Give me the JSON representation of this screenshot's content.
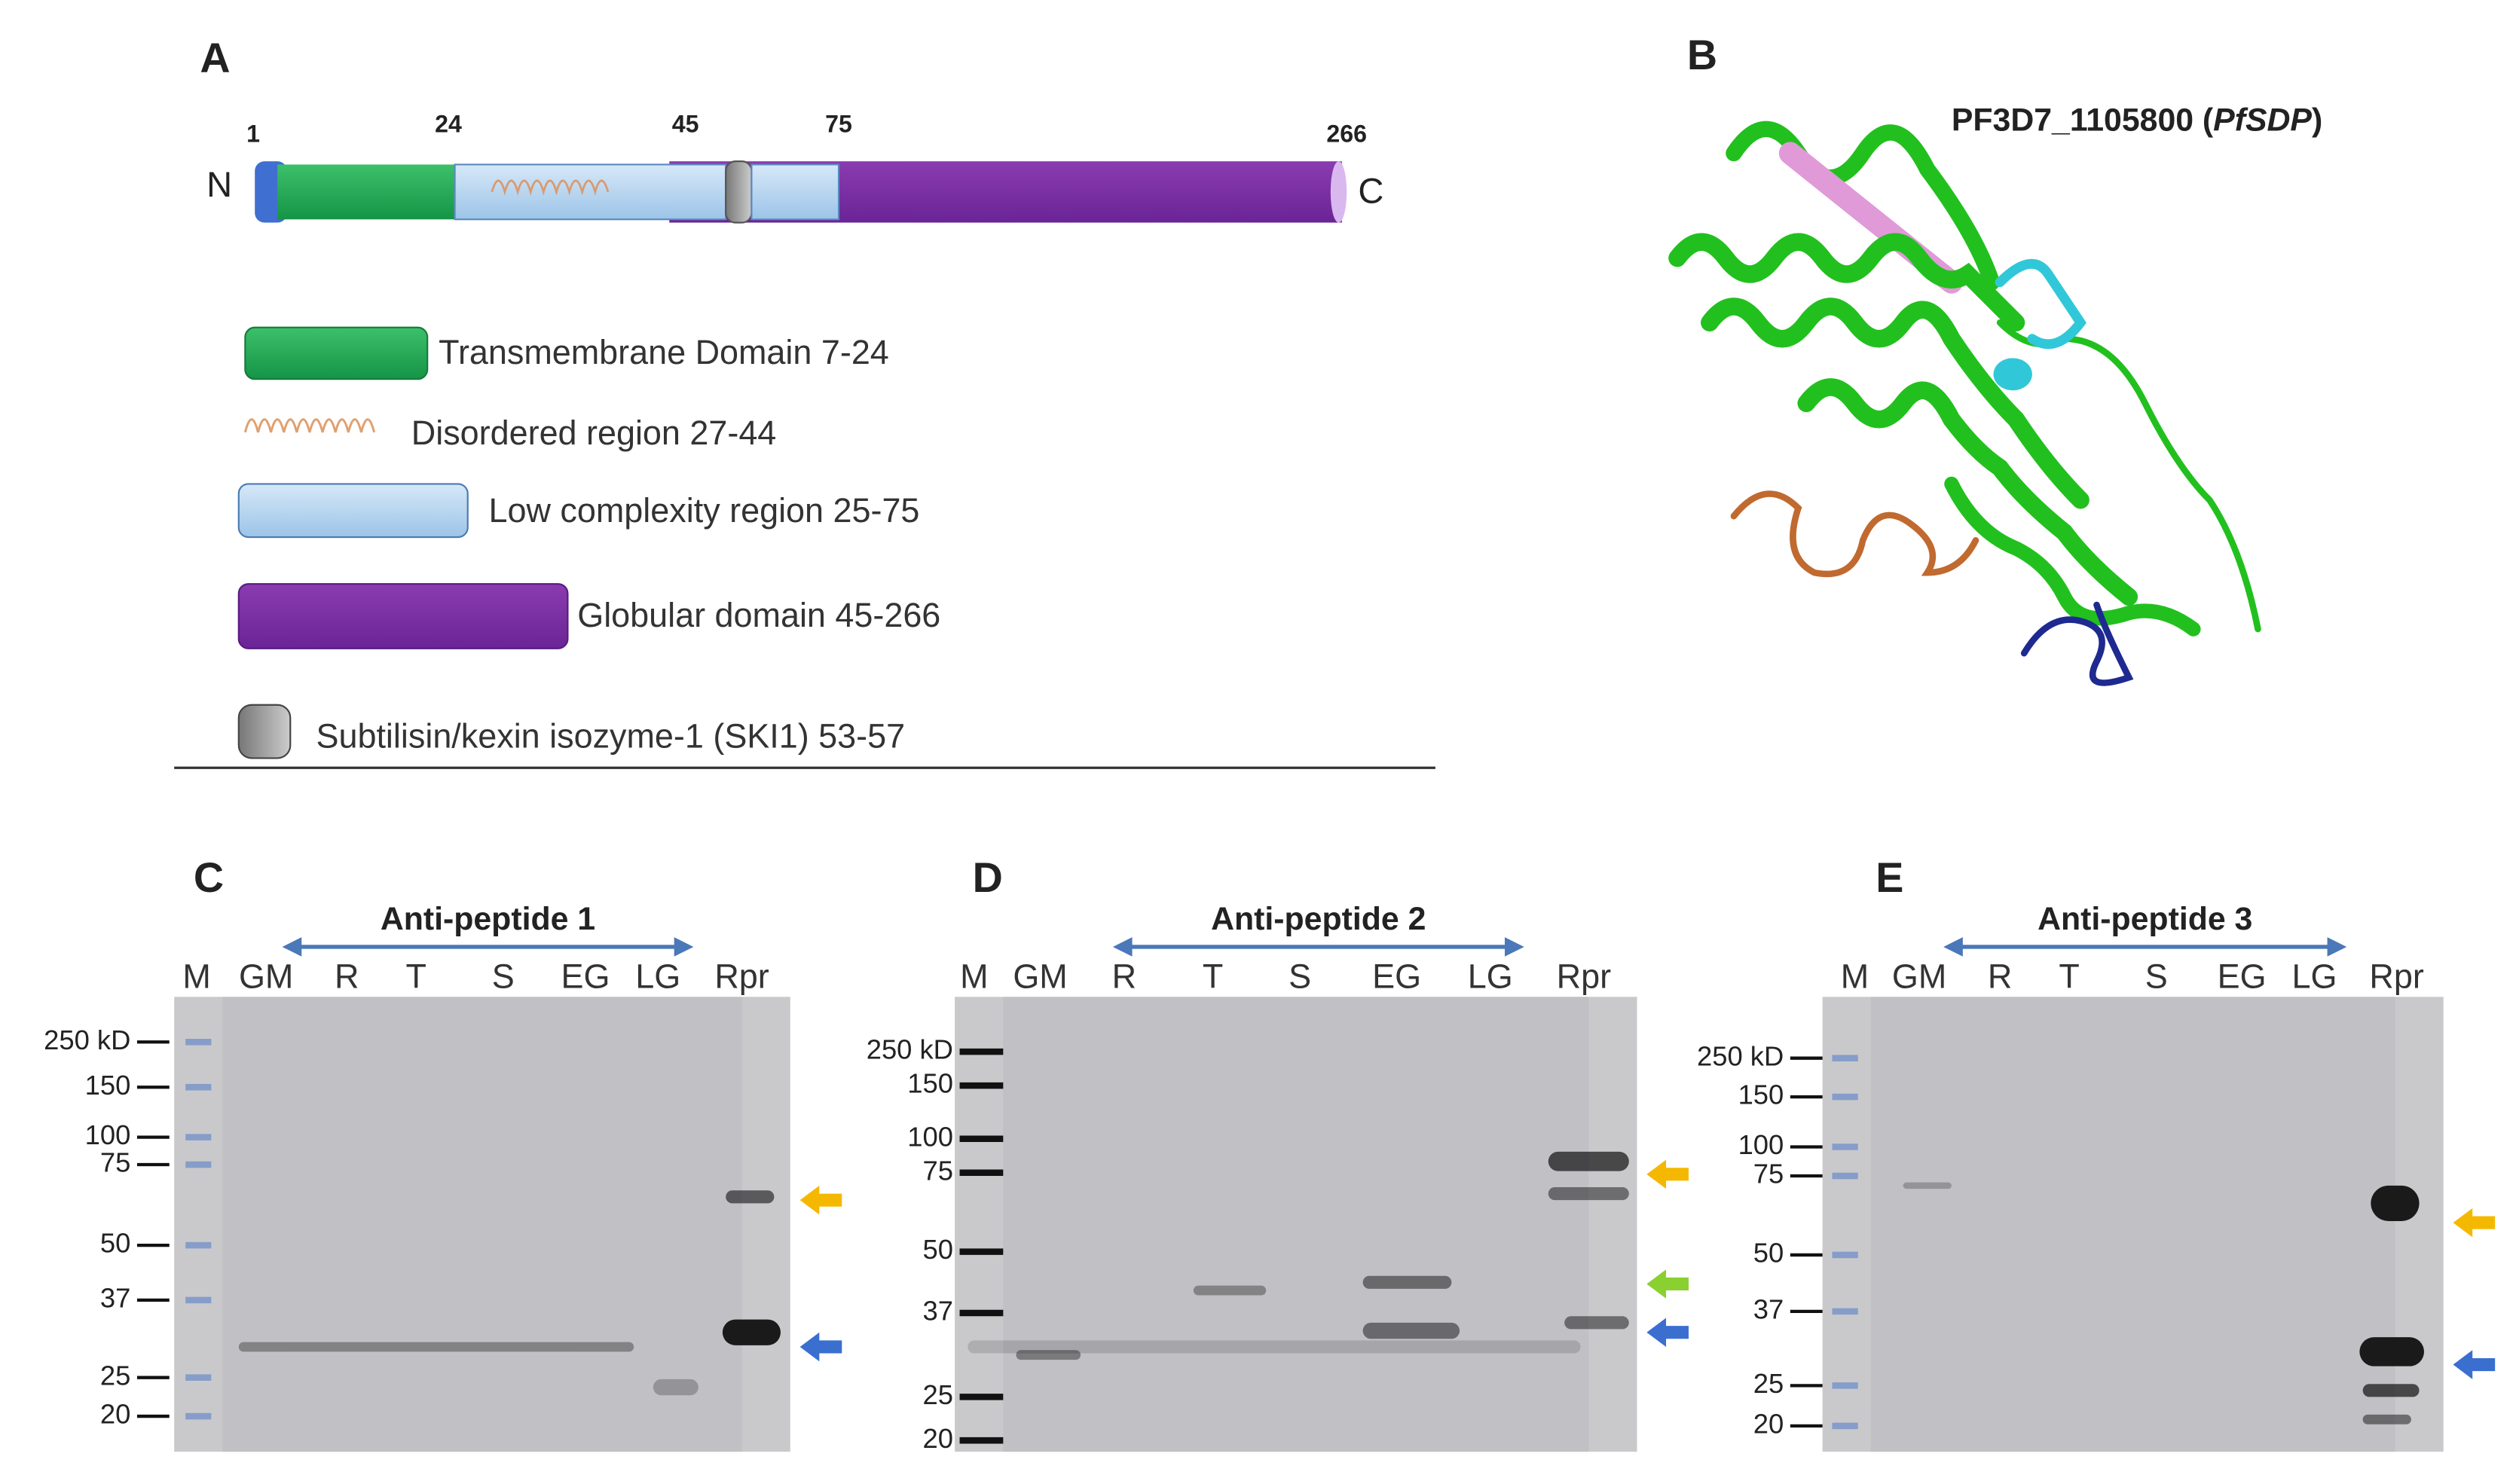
{
  "panel_a": {
    "label": "A",
    "positions": [
      "1",
      "24",
      "45",
      "75",
      "266"
    ],
    "n_label": "N",
    "c_label": "C",
    "legend": [
      "Transmembrane Domain 7-24",
      "Disordered region 27-44",
      "Low complexity region 25-75",
      "Globular domain 45-266",
      "Subtilisin/kexin isozyme-1 (SKI1) 53-57"
    ]
  },
  "panel_b": {
    "label": "B",
    "title_prefix": "PF3D7_1105800 (",
    "title_italic": "PfSDP",
    "title_suffix": ")"
  },
  "blots": [
    {
      "label": "C",
      "antibody": "Anti-peptide 1",
      "lanes": [
        "M",
        "GM",
        "R",
        "T",
        "S",
        "EG",
        "LG",
        "Rpr"
      ],
      "markers": [
        "250 kD",
        "150",
        "100",
        "75",
        "50",
        "37",
        "25",
        "20"
      ]
    },
    {
      "label": "D",
      "antibody": "Anti-peptide 2",
      "lanes": [
        "M",
        "GM",
        "R",
        "T",
        "S",
        "EG",
        "LG",
        "Rpr"
      ],
      "markers": [
        "250 kD",
        "150",
        "100",
        "75",
        "50",
        "37",
        "25",
        "20"
      ]
    },
    {
      "label": "E",
      "antibody": "Anti-peptide 3",
      "lanes": [
        "M",
        "GM",
        "R",
        "T",
        "S",
        "EG",
        "LG",
        "Rpr"
      ],
      "markers": [
        "250 kD",
        "150",
        "100",
        "75",
        "50",
        "37",
        "25",
        "20"
      ]
    }
  ]
}
